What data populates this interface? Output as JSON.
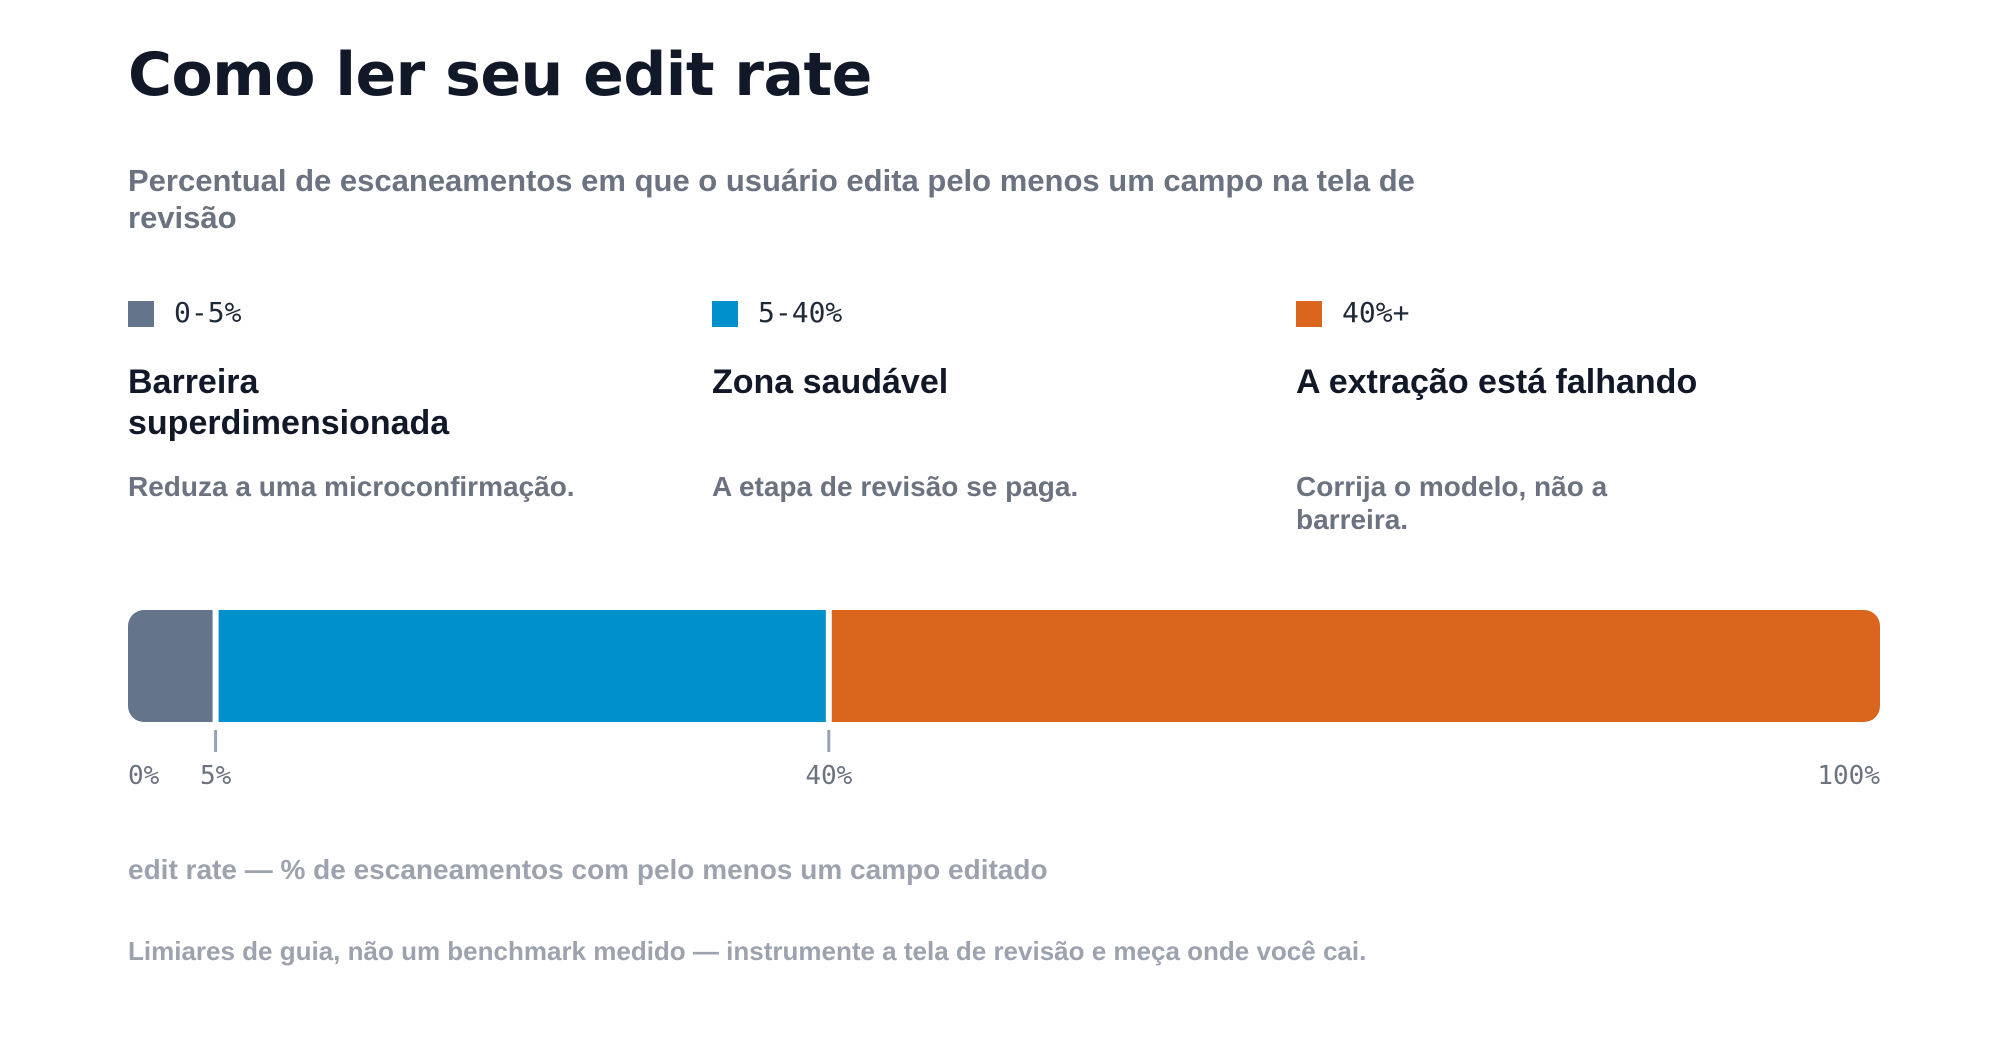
{
  "title": "Como ler seu edit rate",
  "subtitle": "Percentual de escaneamentos em que o usuário edita pelo menos um campo na tela de revisão",
  "zones": [
    {
      "range": "0-5%",
      "title": "Barreira superdimensionada",
      "description": "Reduza a uma microconfirmação.",
      "color": "#64748b"
    },
    {
      "range": "5-40%",
      "title": "Zona saudável",
      "description": "A etapa de revisão se paga.",
      "color": "#0090cc"
    },
    {
      "range": "40%+",
      "title": "A extração está falhando",
      "description": "Corrija o modelo, não a barreira.",
      "color": "#d9661c"
    }
  ],
  "chart_data": {
    "type": "bar",
    "orientation": "horizontal-segmented",
    "segments": [
      {
        "name": "0-5%",
        "start": 0,
        "end": 5,
        "color": "#64748b"
      },
      {
        "name": "5-40%",
        "start": 5,
        "end": 40,
        "color": "#0090cc"
      },
      {
        "name": "40%+",
        "start": 40,
        "end": 100,
        "color": "#d9661c"
      }
    ],
    "xlim": [
      0,
      100
    ],
    "ticks": [
      {
        "value": 0,
        "label": "0%"
      },
      {
        "value": 5,
        "label": "5%"
      },
      {
        "value": 40,
        "label": "40%"
      },
      {
        "value": 100,
        "label": "100%"
      }
    ],
    "xlabel": "edit rate — % de escaneamentos com pelo menos um campo editado"
  },
  "footnote": "Limiares de guia, não um benchmark medido — instrumente a tela de revisão e meça onde você cai."
}
